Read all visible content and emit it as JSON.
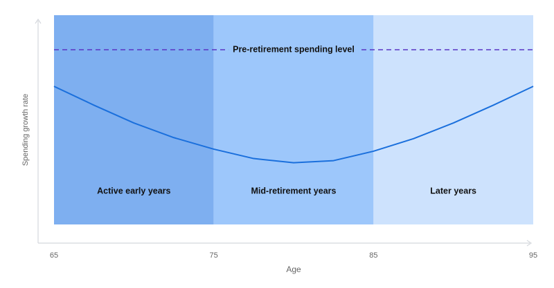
{
  "chart_data": {
    "type": "line",
    "x_label": "Age",
    "y_label": "Spending growth rate",
    "x": [
      65,
      67.5,
      70,
      72.5,
      75,
      77.5,
      80,
      82.5,
      85,
      87.5,
      90,
      92.5,
      95
    ],
    "series": [
      {
        "color": "#1a6fdc",
        "values": [
          66,
          57,
          48.5,
          41.5,
          36,
          31.5,
          29.5,
          30.5,
          35,
          41,
          48.5,
          57,
          66
        ]
      }
    ],
    "xlim": [
      65,
      95
    ],
    "xticks": [
      65,
      75,
      85,
      95
    ],
    "ylim": [
      0,
      100
    ],
    "bands": [
      {
        "label": "Active early years",
        "start": 65,
        "end": 75,
        "color": "#7eaff0"
      },
      {
        "label": "Mid-retirement years",
        "start": 75,
        "end": 85,
        "color": "#9dc7fb"
      },
      {
        "label": "Later years",
        "start": 85,
        "end": 95,
        "color": "#cde2fd"
      }
    ],
    "reference_line": {
      "label": "Pre-retirement spending level",
      "value": 83.5,
      "color": "#5a35c4"
    }
  }
}
